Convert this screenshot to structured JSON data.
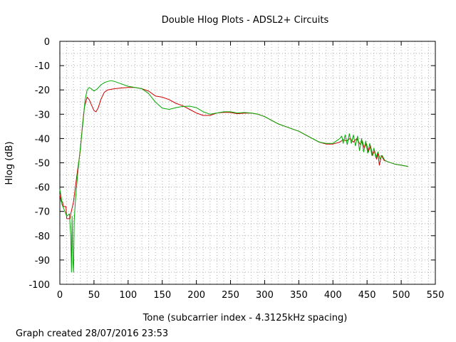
{
  "chart_data": {
    "type": "line",
    "title": "Double Hlog Plots - ADSL2+ Circuits",
    "xlabel": "Tone (subcarrier index - 4.3125kHz spacing)",
    "ylabel": "Hlog (dB)",
    "xlim": [
      0,
      550
    ],
    "ylim": [
      -100,
      0
    ],
    "x_ticks": [
      0,
      50,
      100,
      150,
      200,
      250,
      300,
      350,
      400,
      450,
      500,
      550
    ],
    "y_ticks": [
      0,
      -10,
      -20,
      -30,
      -40,
      -50,
      -60,
      -70,
      -80,
      -90,
      -100
    ],
    "grid": true,
    "legend": "none",
    "footer": "Graph created 28/07/2016 23:53",
    "series": [
      {
        "color": "#cc0000",
        "points": [
          [
            0,
            -63
          ],
          [
            2,
            -66
          ],
          [
            4,
            -66
          ],
          [
            5,
            -68
          ],
          [
            9,
            -68
          ],
          [
            10,
            -73
          ],
          [
            15,
            -73
          ],
          [
            16,
            -71
          ],
          [
            20,
            -66
          ],
          [
            25,
            -55
          ],
          [
            30,
            -45
          ],
          [
            33,
            -35
          ],
          [
            36,
            -27
          ],
          [
            40,
            -23
          ],
          [
            43,
            -24
          ],
          [
            46,
            -26
          ],
          [
            50,
            -28.5
          ],
          [
            53,
            -29
          ],
          [
            56,
            -27.5
          ],
          [
            60,
            -24
          ],
          [
            65,
            -21
          ],
          [
            70,
            -20
          ],
          [
            80,
            -19.5
          ],
          [
            90,
            -19.2
          ],
          [
            100,
            -19
          ],
          [
            110,
            -19
          ],
          [
            120,
            -19.5
          ],
          [
            130,
            -20.5
          ],
          [
            140,
            -22.5
          ],
          [
            150,
            -23
          ],
          [
            160,
            -24
          ],
          [
            170,
            -25.5
          ],
          [
            180,
            -26.5
          ],
          [
            190,
            -28
          ],
          [
            200,
            -29.5
          ],
          [
            210,
            -30.5
          ],
          [
            220,
            -30.5
          ],
          [
            230,
            -29.5
          ],
          [
            240,
            -29.2
          ],
          [
            250,
            -29.3
          ],
          [
            260,
            -29.8
          ],
          [
            270,
            -29.6
          ],
          [
            280,
            -29.5
          ],
          [
            290,
            -30
          ],
          [
            300,
            -31
          ],
          [
            310,
            -32.5
          ],
          [
            320,
            -34
          ],
          [
            330,
            -35
          ],
          [
            340,
            -36
          ],
          [
            350,
            -37
          ],
          [
            360,
            -38.5
          ],
          [
            370,
            -40
          ],
          [
            380,
            -41.5
          ],
          [
            390,
            -42.3
          ],
          [
            400,
            -42.3
          ],
          [
            410,
            -41.5
          ],
          [
            415,
            -40.5
          ],
          [
            420,
            -41
          ],
          [
            425,
            -40
          ],
          [
            430,
            -41.5
          ],
          [
            435,
            -40
          ],
          [
            440,
            -42.5
          ],
          [
            443,
            -41
          ],
          [
            446,
            -44
          ],
          [
            449,
            -42
          ],
          [
            452,
            -45.5
          ],
          [
            455,
            -43
          ],
          [
            458,
            -47
          ],
          [
            461,
            -45
          ],
          [
            464,
            -48.5
          ],
          [
            466,
            -46
          ],
          [
            468,
            -51
          ],
          [
            471,
            -47
          ],
          [
            475,
            -49
          ],
          [
            480,
            -49.5
          ],
          [
            490,
            -50.5
          ],
          [
            500,
            -51
          ],
          [
            510,
            -51.5
          ]
        ]
      },
      {
        "color": "#00aa00",
        "points": [
          [
            0,
            -61
          ],
          [
            2,
            -64
          ],
          [
            3,
            -67
          ],
          [
            6,
            -69
          ],
          [
            10,
            -72
          ],
          [
            14,
            -71
          ],
          [
            16,
            -80
          ],
          [
            17,
            -95
          ],
          [
            18,
            -72
          ],
          [
            19,
            -90
          ],
          [
            20,
            -95
          ],
          [
            21,
            -74
          ],
          [
            23,
            -65
          ],
          [
            26,
            -55
          ],
          [
            30,
            -44
          ],
          [
            34,
            -33
          ],
          [
            37,
            -24
          ],
          [
            40,
            -20
          ],
          [
            43,
            -19
          ],
          [
            46,
            -19.5
          ],
          [
            50,
            -20.5
          ],
          [
            55,
            -19.5
          ],
          [
            60,
            -18
          ],
          [
            65,
            -17
          ],
          [
            70,
            -16.5
          ],
          [
            75,
            -16.2
          ],
          [
            80,
            -16.5
          ],
          [
            90,
            -17.5
          ],
          [
            100,
            -18.5
          ],
          [
            110,
            -19
          ],
          [
            120,
            -19.5
          ],
          [
            130,
            -21.5
          ],
          [
            140,
            -25
          ],
          [
            150,
            -27.5
          ],
          [
            160,
            -28
          ],
          [
            170,
            -27.3
          ],
          [
            180,
            -26.8
          ],
          [
            190,
            -26.7
          ],
          [
            200,
            -27.3
          ],
          [
            210,
            -29
          ],
          [
            220,
            -30
          ],
          [
            230,
            -29.5
          ],
          [
            240,
            -29
          ],
          [
            250,
            -29
          ],
          [
            260,
            -29.5
          ],
          [
            270,
            -29.3
          ],
          [
            280,
            -29.5
          ],
          [
            290,
            -30
          ],
          [
            300,
            -31
          ],
          [
            310,
            -32.5
          ],
          [
            320,
            -34
          ],
          [
            330,
            -35
          ],
          [
            340,
            -36
          ],
          [
            350,
            -37
          ],
          [
            360,
            -38.5
          ],
          [
            370,
            -40
          ],
          [
            380,
            -41.5
          ],
          [
            390,
            -42
          ],
          [
            400,
            -42
          ],
          [
            405,
            -41
          ],
          [
            410,
            -40
          ],
          [
            413,
            -39
          ],
          [
            415,
            -42
          ],
          [
            418,
            -38.5
          ],
          [
            421,
            -42.5
          ],
          [
            424,
            -38
          ],
          [
            427,
            -42
          ],
          [
            430,
            -38.5
          ],
          [
            433,
            -43
          ],
          [
            436,
            -39
          ],
          [
            439,
            -45
          ],
          [
            442,
            -40
          ],
          [
            445,
            -45.5
          ],
          [
            448,
            -41
          ],
          [
            451,
            -46
          ],
          [
            454,
            -42
          ],
          [
            457,
            -47
          ],
          [
            460,
            -44
          ],
          [
            463,
            -48
          ],
          [
            466,
            -45.5
          ],
          [
            469,
            -48.5
          ],
          [
            472,
            -47
          ],
          [
            476,
            -49
          ],
          [
            480,
            -49.5
          ],
          [
            490,
            -50.5
          ],
          [
            500,
            -51
          ],
          [
            510,
            -51.5
          ]
        ]
      }
    ]
  }
}
